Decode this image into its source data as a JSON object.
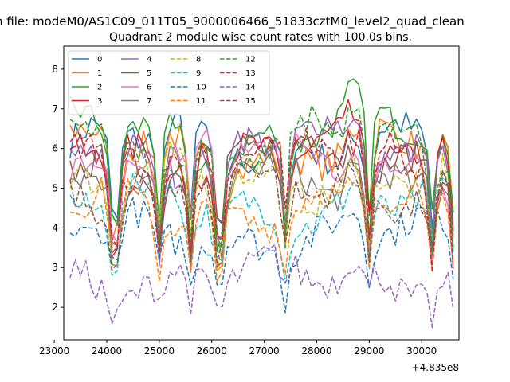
{
  "chart_data": {
    "type": "line",
    "suptitle": "n file: modeM0/AS1C09_011T05_9000006466_51833cztM0_level2_quad_clean",
    "title": "Quadrant 2 module wise count rates with 100.0s bins.",
    "offset_label": "+4.835e8",
    "xlim": [
      23180,
      30710
    ],
    "ylim": [
      1.18,
      8.58
    ],
    "x_ticks": [
      23000,
      24000,
      25000,
      26000,
      27000,
      28000,
      29000,
      30000
    ],
    "x_tick_labels": [
      "23000",
      "24000",
      "25000",
      "26000",
      "27000",
      "28000",
      "29000",
      "30000"
    ],
    "y_ticks": [
      2,
      3,
      4,
      5,
      6,
      7,
      8
    ],
    "y_tick_labels": [
      "2",
      "3",
      "4",
      "5",
      "6",
      "7",
      "8"
    ],
    "grid": false,
    "legend_position": "top-left",
    "x_start": 23300,
    "x_step": 100,
    "dip_positions": [
      24150,
      25030,
      25630,
      26150,
      27400,
      28960,
      30200,
      30620
    ],
    "series": [
      {
        "name": "0",
        "color": "#1f77b4",
        "style": "solid",
        "mean": 6.15,
        "amp": 0.35
      },
      {
        "name": "1",
        "color": "#ff7f0e",
        "style": "solid",
        "mean": 5.95,
        "amp": 0.35
      },
      {
        "name": "2",
        "color": "#2ca02c",
        "style": "solid",
        "mean": 6.4,
        "amp": 0.45
      },
      {
        "name": "3",
        "color": "#d62728",
        "style": "solid",
        "mean": 5.9,
        "amp": 0.3
      },
      {
        "name": "4",
        "color": "#9467bd",
        "style": "solid",
        "mean": 6.05,
        "amp": 0.4
      },
      {
        "name": "5",
        "color": "#8c564b",
        "style": "solid",
        "mean": 5.8,
        "amp": 0.3
      },
      {
        "name": "6",
        "color": "#e377c2",
        "style": "solid",
        "mean": 5.75,
        "amp": 0.35
      },
      {
        "name": "7",
        "color": "#7f7f7f",
        "style": "solid",
        "mean": 5.35,
        "amp": 0.3
      },
      {
        "name": "8",
        "color": "#bcbd22",
        "style": "dashed",
        "mean": 5.25,
        "amp": 0.3
      },
      {
        "name": "9",
        "color": "#17becf",
        "style": "dashed",
        "mean": 4.55,
        "amp": 0.3
      },
      {
        "name": "10",
        "color": "#1f77b4",
        "style": "dashed",
        "mean": 3.85,
        "amp": 0.3
      },
      {
        "name": "11",
        "color": "#ff7f0e",
        "style": "dashed",
        "mean": 4.5,
        "amp": 0.3
      },
      {
        "name": "12",
        "color": "#2ca02c",
        "style": "dashed",
        "mean": 6.2,
        "amp": 0.4
      },
      {
        "name": "13",
        "color": "#d62728",
        "style": "dashed",
        "mean": 5.8,
        "amp": 0.35
      },
      {
        "name": "14",
        "color": "#9467bd",
        "style": "dashed",
        "mean": 2.75,
        "amp": 0.25
      },
      {
        "name": "15",
        "color": "#8c564b",
        "style": "dashed",
        "mean": 5.0,
        "amp": 0.3
      }
    ]
  }
}
